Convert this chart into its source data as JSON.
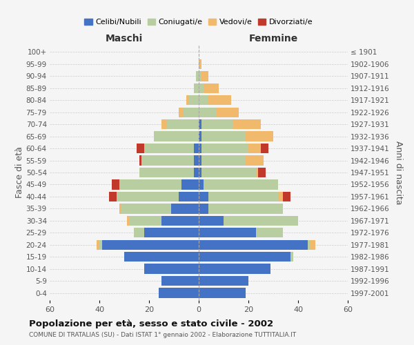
{
  "age_groups": [
    "0-4",
    "5-9",
    "10-14",
    "15-19",
    "20-24",
    "25-29",
    "30-34",
    "35-39",
    "40-44",
    "45-49",
    "50-54",
    "55-59",
    "60-64",
    "65-69",
    "70-74",
    "75-79",
    "80-84",
    "85-89",
    "90-94",
    "95-99",
    "100+"
  ],
  "birth_years": [
    "1997-2001",
    "1992-1996",
    "1987-1991",
    "1982-1986",
    "1977-1981",
    "1972-1976",
    "1967-1971",
    "1962-1966",
    "1957-1961",
    "1952-1956",
    "1947-1951",
    "1942-1946",
    "1937-1941",
    "1932-1936",
    "1927-1931",
    "1922-1926",
    "1917-1921",
    "1912-1916",
    "1907-1911",
    "1902-1906",
    "≤ 1901"
  ],
  "maschi": {
    "celibi": [
      16,
      15,
      22,
      30,
      39,
      22,
      15,
      11,
      8,
      7,
      2,
      2,
      2,
      0,
      0,
      0,
      0,
      0,
      0,
      0,
      0
    ],
    "coniugati": [
      0,
      0,
      0,
      0,
      1,
      4,
      13,
      20,
      25,
      25,
      22,
      21,
      20,
      18,
      13,
      6,
      4,
      2,
      1,
      0,
      0
    ],
    "vedovi": [
      0,
      0,
      0,
      0,
      1,
      0,
      1,
      1,
      0,
      0,
      0,
      0,
      0,
      0,
      2,
      2,
      1,
      0,
      0,
      0,
      0
    ],
    "divorziati": [
      0,
      0,
      0,
      0,
      0,
      0,
      0,
      0,
      3,
      3,
      0,
      1,
      3,
      0,
      0,
      0,
      0,
      0,
      0,
      0,
      0
    ]
  },
  "femmine": {
    "nubili": [
      19,
      20,
      29,
      37,
      44,
      23,
      10,
      4,
      4,
      2,
      1,
      1,
      1,
      1,
      1,
      0,
      0,
      0,
      0,
      0,
      0
    ],
    "coniugate": [
      0,
      0,
      0,
      1,
      1,
      11,
      30,
      30,
      28,
      30,
      22,
      18,
      19,
      18,
      13,
      7,
      4,
      2,
      1,
      0,
      0
    ],
    "vedove": [
      0,
      0,
      0,
      0,
      2,
      0,
      0,
      0,
      2,
      0,
      1,
      7,
      5,
      11,
      11,
      9,
      9,
      6,
      3,
      1,
      0
    ],
    "divorziate": [
      0,
      0,
      0,
      0,
      0,
      0,
      0,
      0,
      3,
      0,
      3,
      0,
      3,
      0,
      0,
      0,
      0,
      0,
      0,
      0,
      0
    ]
  },
  "colors": {
    "celibi_nubili": "#4472c4",
    "coniugati": "#b8cda0",
    "vedovi": "#f0b96b",
    "divorziati": "#c0392b"
  },
  "xlim": 60,
  "title": "Popolazione per età, sesso e stato civile - 2002",
  "subtitle": "COMUNE DI TRATALIAS (SU) - Dati ISTAT 1° gennaio 2002 - Elaborazione TUTTITALIA.IT",
  "ylabel": "Fasce di età",
  "ylabel2": "Anni di nascita",
  "xlabel_maschi": "Maschi",
  "xlabel_femmine": "Femmine",
  "legend_labels": [
    "Celibi/Nubili",
    "Coniugati/e",
    "Vedovi/e",
    "Divorziati/e"
  ],
  "background_color": "#f5f5f5",
  "grid_color": "#cccccc"
}
